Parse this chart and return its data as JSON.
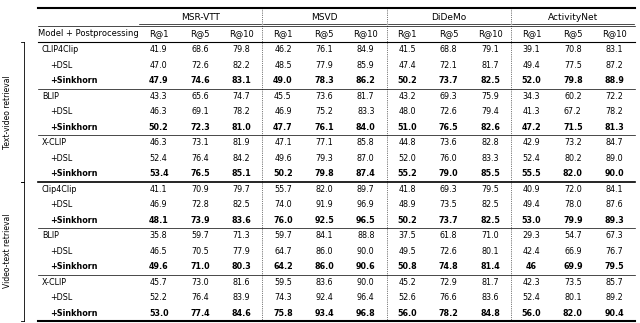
{
  "col_headers_top": [
    "",
    "MSR-VTT",
    "",
    "",
    "MSVD",
    "",
    "",
    "DiDeMo",
    "",
    "",
    "ActivityNet",
    "",
    ""
  ],
  "col_headers_mid": [
    "Model + Postprocessing",
    "R@1",
    "R@5",
    "R@10",
    "R@1",
    "R@5",
    "R@10",
    "R@1",
    "R@5",
    "R@10",
    "R@1",
    "R@5",
    "R@10"
  ],
  "section1_label": "Text-video retrieval",
  "section2_label": "Video-text retrieval",
  "rows": [
    {
      "group": "Text-video",
      "model": "CLIP4Clip",
      "bold": false,
      "values": [
        "41.9",
        "68.6",
        "79.8",
        "46.2",
        "76.1",
        "84.9",
        "41.5",
        "68.8",
        "79.1",
        "39.1",
        "70.8",
        "83.1"
      ]
    },
    {
      "group": "Text-video",
      "model": "+DSL",
      "bold": false,
      "values": [
        "47.0",
        "72.6",
        "82.2",
        "48.5",
        "77.9",
        "85.9",
        "47.4",
        "72.1",
        "81.7",
        "49.4",
        "77.5",
        "87.2"
      ]
    },
    {
      "group": "Text-video",
      "model": "+Sinkhorn",
      "bold": true,
      "values": [
        "47.9",
        "74.6",
        "83.1",
        "49.0",
        "78.3",
        "86.2",
        "50.2",
        "73.7",
        "82.5",
        "52.0",
        "79.8",
        "88.9"
      ]
    },
    {
      "group": "Text-video",
      "model": "BLIP",
      "bold": false,
      "values": [
        "43.3",
        "65.6",
        "74.7",
        "45.5",
        "73.6",
        "81.7",
        "43.2",
        "69.3",
        "75.9",
        "34.3",
        "60.2",
        "72.2"
      ]
    },
    {
      "group": "Text-video",
      "model": "+DSL",
      "bold": false,
      "values": [
        "46.3",
        "69.1",
        "78.2",
        "46.9",
        "75.2",
        "83.3",
        "48.0",
        "72.6",
        "79.4",
        "41.3",
        "67.2",
        "78.2"
      ]
    },
    {
      "group": "Text-video",
      "model": "+Sinkhorn",
      "bold": true,
      "values": [
        "50.2",
        "72.3",
        "81.0",
        "47.7",
        "76.1",
        "84.0",
        "51.0",
        "76.5",
        "82.6",
        "47.2",
        "71.5",
        "81.3"
      ]
    },
    {
      "group": "Text-video",
      "model": "X-CLIP",
      "bold": false,
      "values": [
        "46.3",
        "73.1",
        "81.9",
        "47.1",
        "77.1",
        "85.8",
        "44.8",
        "73.6",
        "82.8",
        "42.9",
        "73.2",
        "84.7"
      ]
    },
    {
      "group": "Text-video",
      "model": "+DSL",
      "bold": false,
      "values": [
        "52.4",
        "76.4",
        "84.2",
        "49.6",
        "79.3",
        "87.0",
        "52.0",
        "76.0",
        "83.3",
        "52.4",
        "80.2",
        "89.0"
      ]
    },
    {
      "group": "Text-video",
      "model": "+Sinkhorn",
      "bold": true,
      "values": [
        "53.4",
        "76.5",
        "85.1",
        "50.2",
        "79.8",
        "87.4",
        "55.2",
        "79.0",
        "85.5",
        "55.5",
        "82.0",
        "90.0"
      ]
    },
    {
      "group": "Video-text",
      "model": "Clip4Clip",
      "bold": false,
      "values": [
        "41.1",
        "70.9",
        "79.7",
        "55.7",
        "82.0",
        "89.7",
        "41.8",
        "69.3",
        "79.5",
        "40.9",
        "72.0",
        "84.1"
      ]
    },
    {
      "group": "Video-text",
      "model": "+DSL",
      "bold": false,
      "values": [
        "46.9",
        "72.8",
        "82.5",
        "74.0",
        "91.9",
        "96.9",
        "48.9",
        "73.5",
        "82.5",
        "49.4",
        "78.0",
        "87.6"
      ]
    },
    {
      "group": "Video-text",
      "model": "+Sinkhorn",
      "bold": true,
      "values": [
        "48.1",
        "73.9",
        "83.6",
        "76.0",
        "92.5",
        "96.5",
        "50.2",
        "73.7",
        "82.5",
        "53.0",
        "79.9",
        "89.3"
      ]
    },
    {
      "group": "Video-text",
      "model": "BLIP",
      "bold": false,
      "values": [
        "35.8",
        "59.7",
        "71.3",
        "59.7",
        "84.1",
        "88.8",
        "37.5",
        "61.8",
        "71.0",
        "29.3",
        "54.7",
        "67.3"
      ]
    },
    {
      "group": "Video-text",
      "model": "+DSL",
      "bold": false,
      "values": [
        "46.5",
        "70.5",
        "77.9",
        "64.7",
        "86.0",
        "90.0",
        "49.5",
        "72.6",
        "80.1",
        "42.4",
        "66.9",
        "76.7"
      ]
    },
    {
      "group": "Video-text",
      "model": "+Sinkhorn",
      "bold": true,
      "values": [
        "49.6",
        "71.0",
        "80.3",
        "64.2",
        "86.0",
        "90.6",
        "50.8",
        "74.8",
        "81.4",
        "46",
        "69.9",
        "79.5"
      ]
    },
    {
      "group": "Video-text",
      "model": "X-CLIP",
      "bold": false,
      "values": [
        "45.7",
        "73.0",
        "81.6",
        "59.5",
        "83.6",
        "90.0",
        "45.2",
        "72.9",
        "81.7",
        "42.3",
        "73.5",
        "85.7"
      ]
    },
    {
      "group": "Video-text",
      "model": "+DSL",
      "bold": false,
      "values": [
        "52.2",
        "76.4",
        "83.9",
        "74.3",
        "92.4",
        "96.4",
        "52.6",
        "76.6",
        "83.6",
        "52.4",
        "80.1",
        "89.2"
      ]
    },
    {
      "group": "Video-text",
      "model": "+Sinkhorn",
      "bold": true,
      "values": [
        "53.0",
        "77.4",
        "84.6",
        "75.8",
        "93.4",
        "96.8",
        "56.0",
        "78.2",
        "84.8",
        "56.0",
        "82.0",
        "90.4"
      ]
    }
  ],
  "dividers_after_data_rows": [
    2,
    5,
    8,
    11,
    14
  ],
  "thick_dividers_after": [
    8
  ],
  "background_color": "#ffffff"
}
